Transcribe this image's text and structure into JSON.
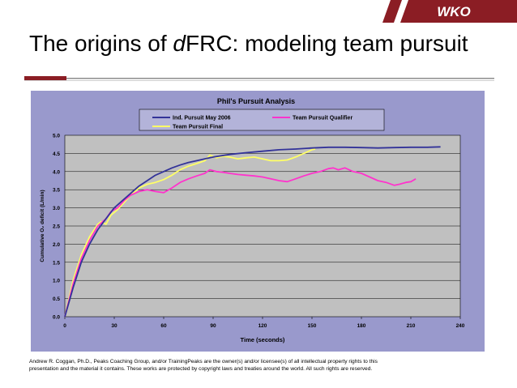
{
  "brand": {
    "logo_text": "WKO",
    "accent_color": "#8b1d24"
  },
  "slide": {
    "title_prefix": "The origins of ",
    "title_emph": "d",
    "title_suffix": "FRC: modeling team pursuit"
  },
  "footer": {
    "text": "Andrew R. Coggan, Ph.D., Peaks Coaching Group, and/or TrainingPeaks are the owner(s) and/or licensee(s) of all intellectual property rights to this presentation and the material it contains. These works are protected by copyright laws and treaties around the world. All such rights are reserved."
  },
  "chart_data": {
    "type": "line",
    "title": "Phil's Pursuit Analysis",
    "xlabel": "Time (seconds)",
    "ylabel": "Cumulative O₂ deficit (L/min)",
    "xlim": [
      0,
      240
    ],
    "ylim": [
      0,
      5
    ],
    "xticks": [
      0,
      30,
      60,
      90,
      120,
      150,
      180,
      210,
      240
    ],
    "yticks": [
      0.0,
      0.5,
      1.0,
      1.5,
      2.0,
      2.5,
      3.0,
      3.5,
      4.0,
      4.5,
      5.0
    ],
    "grid": true,
    "legend_position": "top",
    "colors": {
      "background": "#9999cc",
      "plot_area": "#c0c0c0",
      "gridline": "#000000"
    },
    "series": [
      {
        "name": "Ind. Pursuit May 2006",
        "color": "#333399",
        "x": [
          0,
          5,
          10,
          15,
          20,
          25,
          30,
          35,
          40,
          45,
          50,
          55,
          60,
          65,
          70,
          75,
          80,
          85,
          90,
          100,
          110,
          120,
          130,
          140,
          150,
          160,
          170,
          180,
          190,
          200,
          210,
          220,
          228
        ],
        "y": [
          0.0,
          0.8,
          1.5,
          2.0,
          2.4,
          2.7,
          3.0,
          3.2,
          3.4,
          3.6,
          3.75,
          3.9,
          4.0,
          4.1,
          4.18,
          4.25,
          4.3,
          4.35,
          4.4,
          4.47,
          4.52,
          4.56,
          4.6,
          4.62,
          4.65,
          4.67,
          4.67,
          4.66,
          4.65,
          4.66,
          4.67,
          4.67,
          4.68
        ]
      },
      {
        "name": "Team Pursuit Qualifier",
        "color": "#ff33cc",
        "x": [
          0,
          5,
          10,
          15,
          20,
          25,
          28,
          32,
          36,
          40,
          45,
          50,
          55,
          60,
          65,
          70,
          75,
          80,
          85,
          88,
          92,
          96,
          100,
          105,
          110,
          115,
          120,
          125,
          130,
          135,
          140,
          145,
          150,
          155,
          160,
          163,
          166,
          170,
          175,
          180,
          185,
          190,
          195,
          200,
          203,
          207,
          210,
          213
        ],
        "y": [
          0.0,
          0.9,
          1.6,
          2.1,
          2.5,
          2.7,
          2.9,
          3.0,
          3.2,
          3.35,
          3.45,
          3.5,
          3.45,
          3.42,
          3.55,
          3.7,
          3.8,
          3.88,
          3.95,
          4.05,
          4.0,
          3.98,
          3.95,
          3.92,
          3.9,
          3.88,
          3.85,
          3.8,
          3.75,
          3.72,
          3.8,
          3.88,
          3.95,
          4.0,
          4.08,
          4.1,
          4.05,
          4.1,
          4.0,
          3.95,
          3.85,
          3.75,
          3.7,
          3.62,
          3.65,
          3.7,
          3.72,
          3.8
        ]
      },
      {
        "name": "Team Pursuit Final",
        "color": "#ffff66",
        "x": [
          0,
          5,
          10,
          15,
          20,
          22,
          25,
          28,
          32,
          36,
          40,
          45,
          50,
          55,
          60,
          65,
          70,
          75,
          80,
          85,
          88,
          92,
          96,
          100,
          105,
          110,
          115,
          120,
          125,
          130,
          135,
          140,
          145,
          150,
          152
        ],
        "y": [
          0.0,
          1.0,
          1.7,
          2.2,
          2.55,
          2.62,
          2.55,
          2.8,
          2.95,
          3.15,
          3.35,
          3.55,
          3.65,
          3.7,
          3.78,
          3.9,
          4.05,
          4.15,
          4.22,
          4.3,
          4.45,
          4.38,
          4.42,
          4.4,
          4.35,
          4.38,
          4.4,
          4.35,
          4.3,
          4.3,
          4.32,
          4.4,
          4.5,
          4.6,
          4.62
        ]
      }
    ]
  }
}
